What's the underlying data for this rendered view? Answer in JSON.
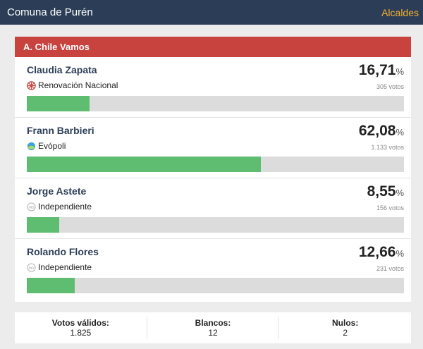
{
  "header": {
    "title": "Comuna de Purén",
    "link": "Alcaldes"
  },
  "pact": {
    "name": "A. Chile Vamos",
    "color": "#c8423e"
  },
  "candidates": [
    {
      "name": "Claudia Zapata",
      "party": "Renovación Nacional",
      "party_icon": "rn-logo-icon",
      "percent": "16,71",
      "votes": "305 votos",
      "share": 0.1671
    },
    {
      "name": "Frann Barbieri",
      "party": "Evópoli",
      "party_icon": "evopoli-logo-icon",
      "percent": "62,08",
      "votes": "1.133 votos",
      "share": 0.6208
    },
    {
      "name": "Jorge Astete",
      "party": "Independiente",
      "party_icon": "independiente-icon",
      "percent": "8,55",
      "votes": "156 votos",
      "share": 0.0855
    },
    {
      "name": "Rolando Flores",
      "party": "Independiente",
      "party_icon": "independiente-icon",
      "percent": "12,66",
      "votes": "231 votos",
      "share": 0.1266
    }
  ],
  "percent_symbol": "%",
  "summary": {
    "valid_label": "Votos válidos:",
    "valid_value": "1.825",
    "blank_label": "Blancos:",
    "blank_value": "12",
    "null_label": "Nulos:",
    "null_value": "2"
  },
  "colors": {
    "topbar": "#2c3e57",
    "link": "#f5b031",
    "bar_fill": "#5fbd72",
    "bar_track": "#dcdcdc"
  }
}
